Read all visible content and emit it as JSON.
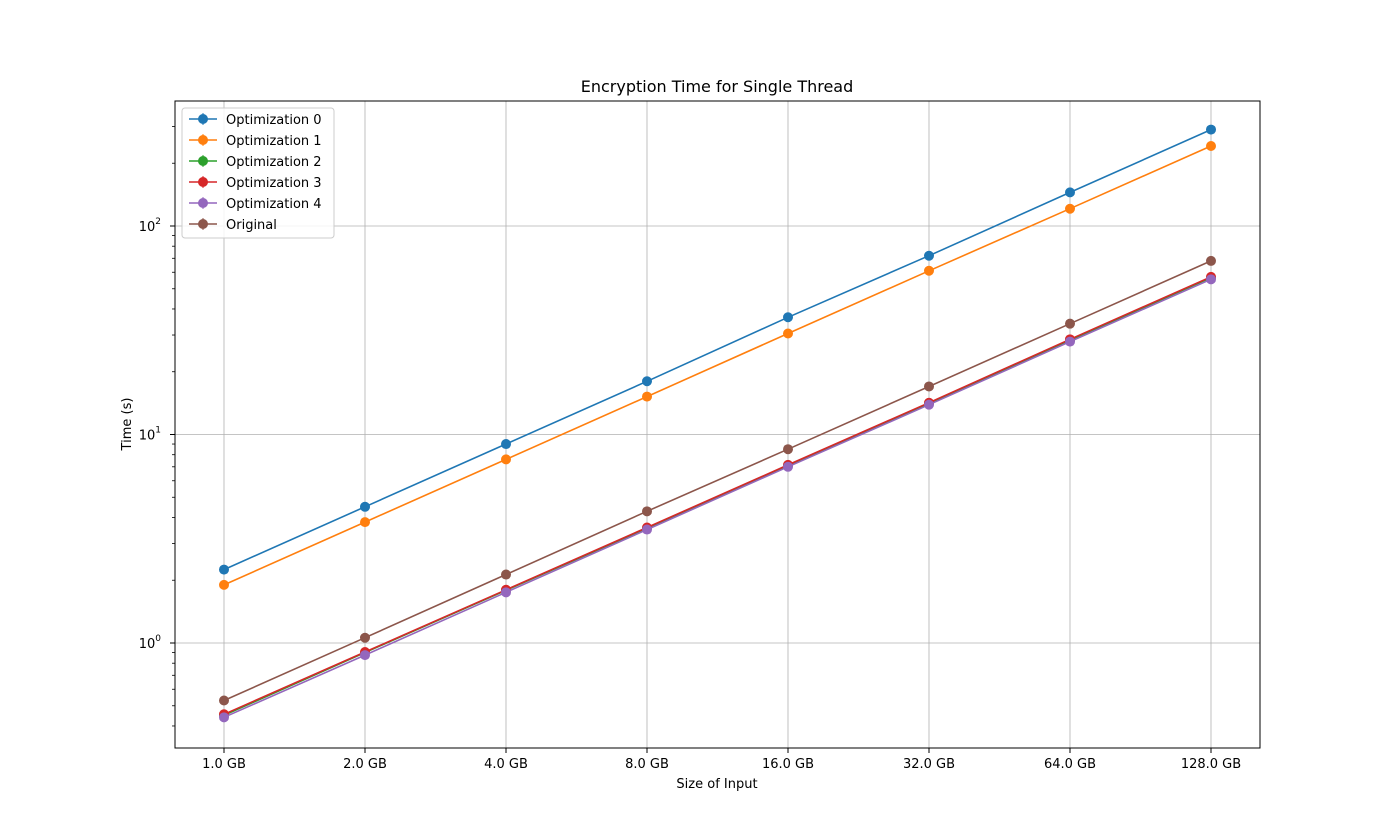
{
  "chart_data": {
    "type": "line",
    "title": "Encryption Time for Single Thread",
    "xlabel": "Size of Input",
    "ylabel": "Time (s)",
    "y_scale": "log",
    "ylim": [
      0.33,
      400
    ],
    "grid": true,
    "legend_position": "top-left",
    "categories": [
      "1.0 GB",
      "2.0 GB",
      "4.0 GB",
      "8.0 GB",
      "16.0 GB",
      "32.0 GB",
      "64.0 GB",
      "128.0 GB"
    ],
    "y_ticks": [
      {
        "value": 1,
        "label": "10",
        "exp": "0"
      },
      {
        "value": 10,
        "label": "10",
        "exp": "1"
      },
      {
        "value": 100,
        "label": "10",
        "exp": "2"
      }
    ],
    "series": [
      {
        "name": "Optimization 0",
        "color": "#1f77b4",
        "values": [
          2.25,
          4.5,
          9.0,
          18.0,
          36.5,
          72.0,
          145.0,
          290.0
        ]
      },
      {
        "name": "Optimization 1",
        "color": "#ff7f0e",
        "values": [
          1.9,
          3.8,
          7.6,
          15.2,
          30.5,
          61.0,
          121.0,
          242.0
        ]
      },
      {
        "name": "Optimization 2",
        "color": "#2ca02c",
        "values": [
          0.45,
          0.9,
          1.79,
          3.55,
          7.1,
          14.1,
          28.3,
          56.5
        ]
      },
      {
        "name": "Optimization 3",
        "color": "#d62728",
        "values": [
          0.455,
          0.905,
          1.8,
          3.58,
          7.15,
          14.2,
          28.6,
          57.0
        ]
      },
      {
        "name": "Optimization 4",
        "color": "#9467bd",
        "values": [
          0.44,
          0.875,
          1.75,
          3.5,
          7.0,
          13.9,
          27.9,
          55.5
        ]
      },
      {
        "name": "Original",
        "color": "#8c564b",
        "values": [
          0.53,
          1.06,
          2.13,
          4.28,
          8.5,
          17.0,
          34.0,
          68.0
        ]
      }
    ]
  }
}
